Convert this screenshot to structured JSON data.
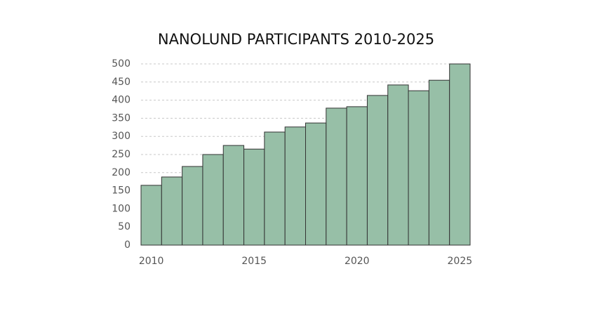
{
  "chart_data": {
    "type": "bar",
    "title": "NANOLUND PARTICIPANTS 2010-2025",
    "x": [
      2010,
      2011,
      2012,
      2013,
      2014,
      2015,
      2016,
      2017,
      2018,
      2019,
      2020,
      2021,
      2022,
      2023,
      2024,
      2025
    ],
    "values": [
      165,
      188,
      217,
      250,
      275,
      265,
      312,
      326,
      337,
      378,
      382,
      413,
      442,
      426,
      455,
      500
    ],
    "color": "#97bfa7",
    "xlim": [
      2009.5,
      2025.5
    ],
    "xticks": [
      2010,
      2015,
      2020,
      2025
    ],
    "ylim": [
      0,
      500
    ],
    "yticks": [
      0,
      50,
      100,
      150,
      200,
      250,
      300,
      350,
      400,
      450,
      500
    ],
    "grid": true
  }
}
